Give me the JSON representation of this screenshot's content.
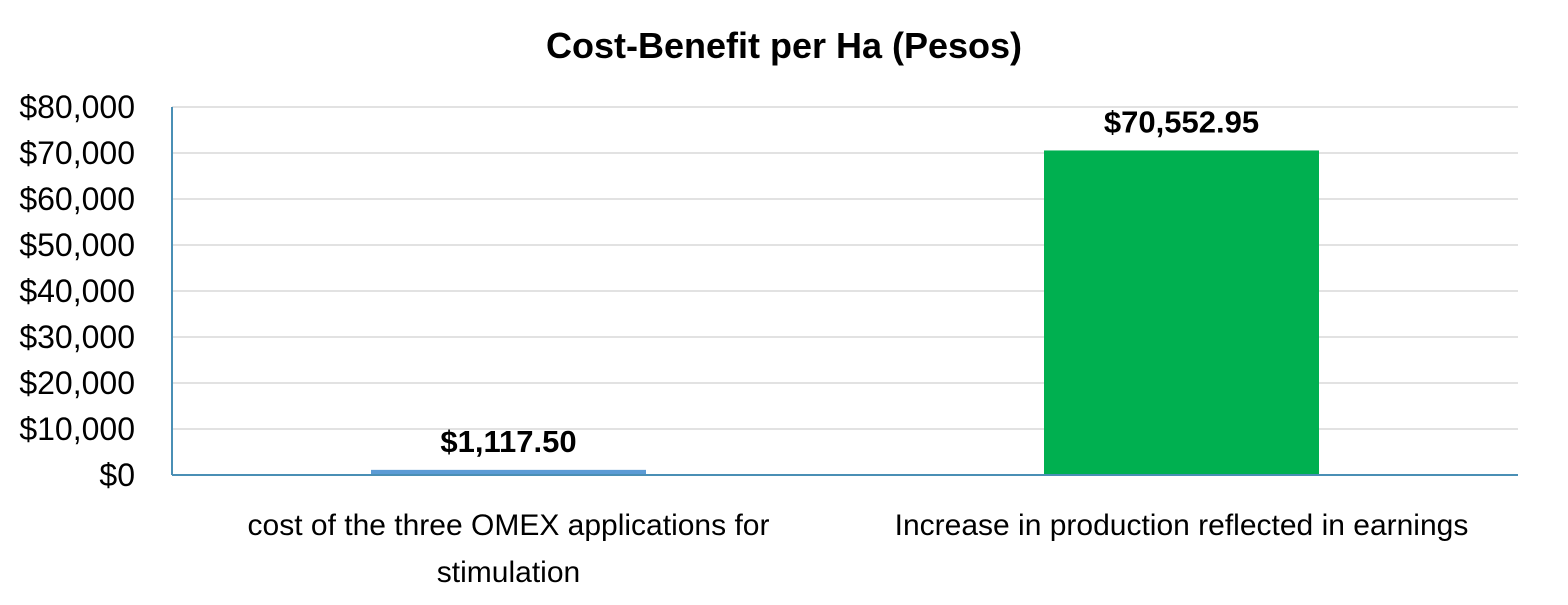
{
  "chart_data": {
    "type": "bar",
    "title": "Cost-Benefit per Ha (Pesos)",
    "xlabel": "",
    "ylabel": "",
    "ylim": [
      0,
      80000
    ],
    "yticks": [
      0,
      10000,
      20000,
      30000,
      40000,
      50000,
      60000,
      70000,
      80000
    ],
    "ytick_labels": [
      "$0",
      "$10,000",
      "$20,000",
      "$30,000",
      "$40,000",
      "$50,000",
      "$60,000",
      "$70,000",
      "$80,000"
    ],
    "grid": true,
    "legend": "none",
    "categories": [
      [
        "cost of the three OMEX applications for",
        "stimulation"
      ],
      [
        "Increase in production reflected in earnings"
      ]
    ],
    "values": [
      1117.5,
      70552.95
    ],
    "data_labels": [
      "$1,117.50",
      "$70,552.95"
    ],
    "colors": [
      "#5b9bd5",
      "#00b050"
    ]
  }
}
